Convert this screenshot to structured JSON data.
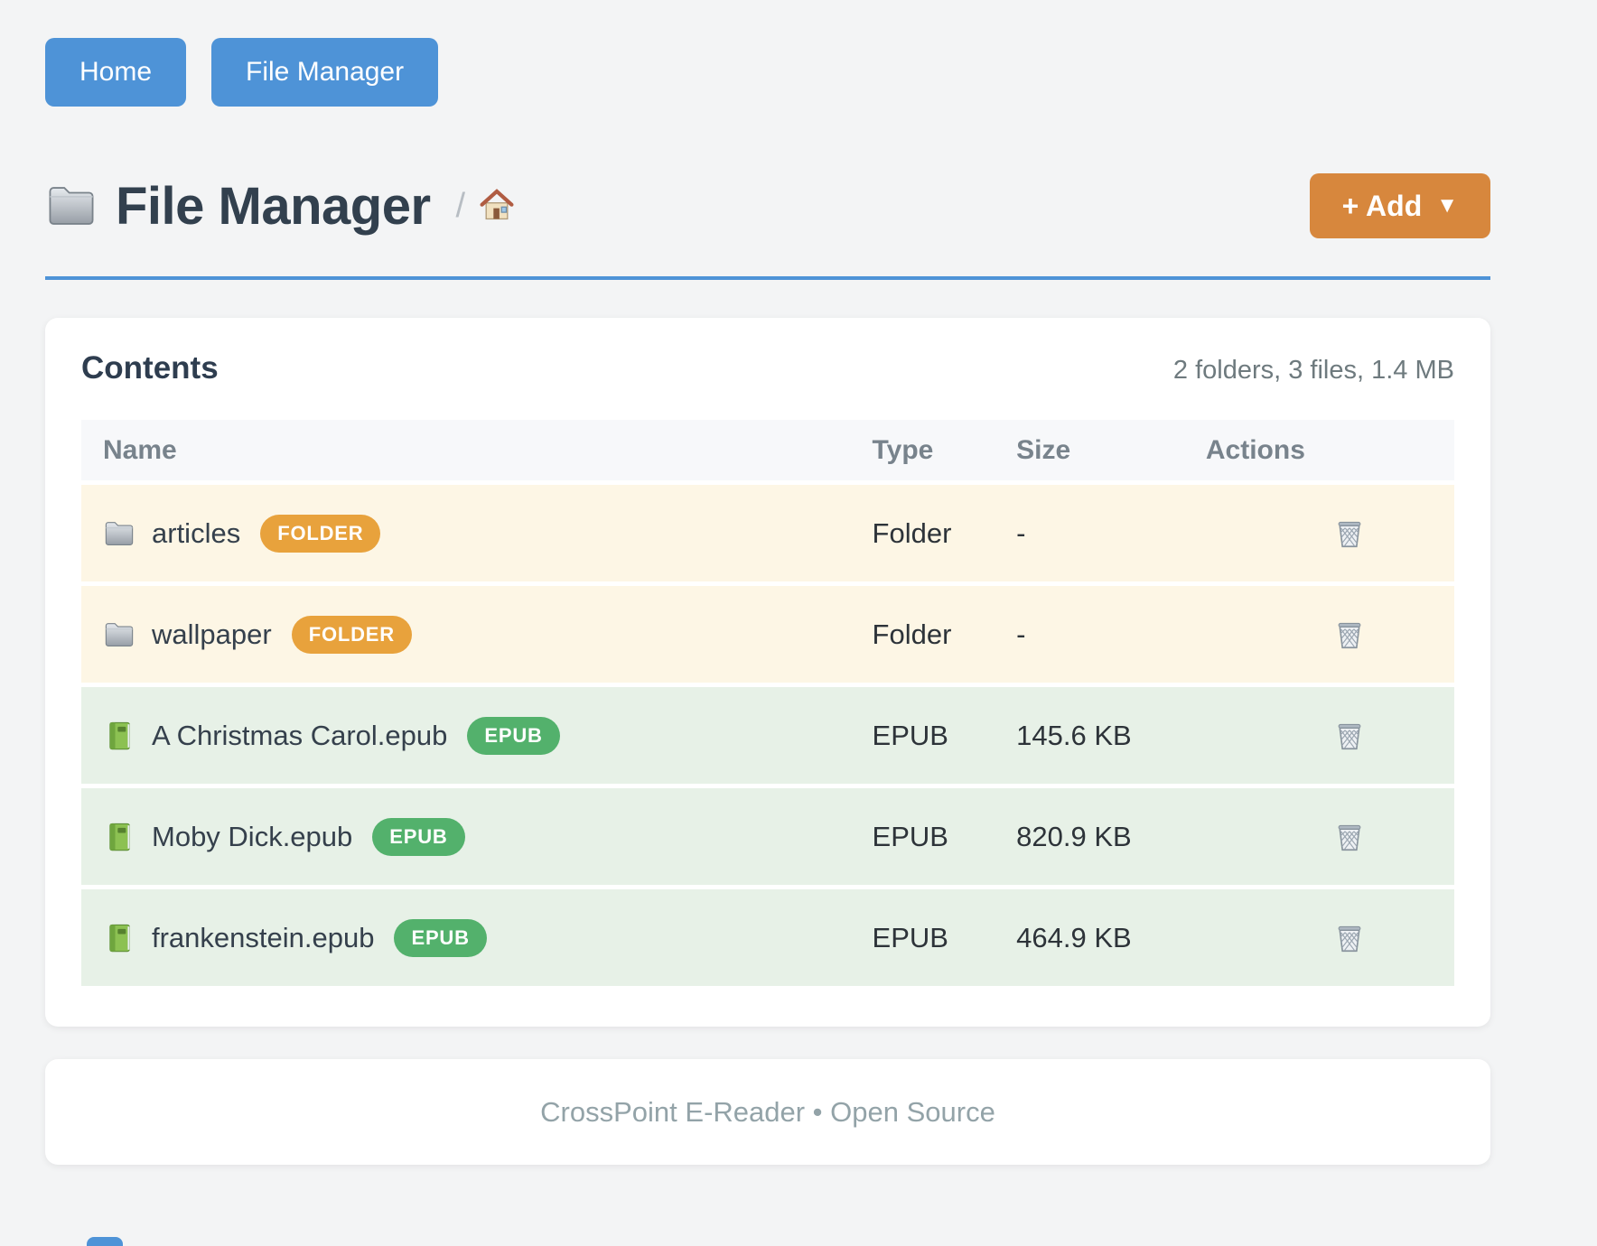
{
  "page": {
    "background": "#f3f4f5",
    "accent_blue": "#4e93d7",
    "accent_orange": "#d7873d",
    "row_color_folder": "#fdf6e5",
    "row_color_file": "#e7f1e7"
  },
  "nav": {
    "buttons": [
      {
        "label": "Home"
      },
      {
        "label": "File Manager"
      }
    ]
  },
  "header": {
    "icon": "folder-icon",
    "title": "File Manager",
    "breadcrumb_separator": "/",
    "breadcrumb_home_icon": "home-icon",
    "add_button": {
      "label": "+ Add",
      "caret": "▼"
    }
  },
  "contents": {
    "heading": "Contents",
    "summary": "2 folders, 3 files, 1.4 MB",
    "columns": {
      "name": "Name",
      "type": "Type",
      "size": "Size",
      "actions": "Actions"
    },
    "action_icon": "trash-icon",
    "rows": [
      {
        "icon": "folder-icon",
        "name": "articles",
        "badge": "FOLDER",
        "badge_color": "#e8a23c",
        "type": "Folder",
        "size": "-",
        "kind": "folder"
      },
      {
        "icon": "folder-icon",
        "name": "wallpaper",
        "badge": "FOLDER",
        "badge_color": "#e8a23c",
        "type": "Folder",
        "size": "-",
        "kind": "folder"
      },
      {
        "icon": "book-icon",
        "name": "A Christmas Carol.epub",
        "badge": "EPUB",
        "badge_color": "#53b16c",
        "type": "EPUB",
        "size": "145.6 KB",
        "kind": "file"
      },
      {
        "icon": "book-icon",
        "name": "Moby Dick.epub",
        "badge": "EPUB",
        "badge_color": "#53b16c",
        "type": "EPUB",
        "size": "820.9 KB",
        "kind": "file"
      },
      {
        "icon": "book-icon",
        "name": "frankenstein.epub",
        "badge": "EPUB",
        "badge_color": "#53b16c",
        "type": "EPUB",
        "size": "464.9 KB",
        "kind": "file"
      }
    ]
  },
  "footer": {
    "text": "CrossPoint E-Reader • Open Source"
  }
}
